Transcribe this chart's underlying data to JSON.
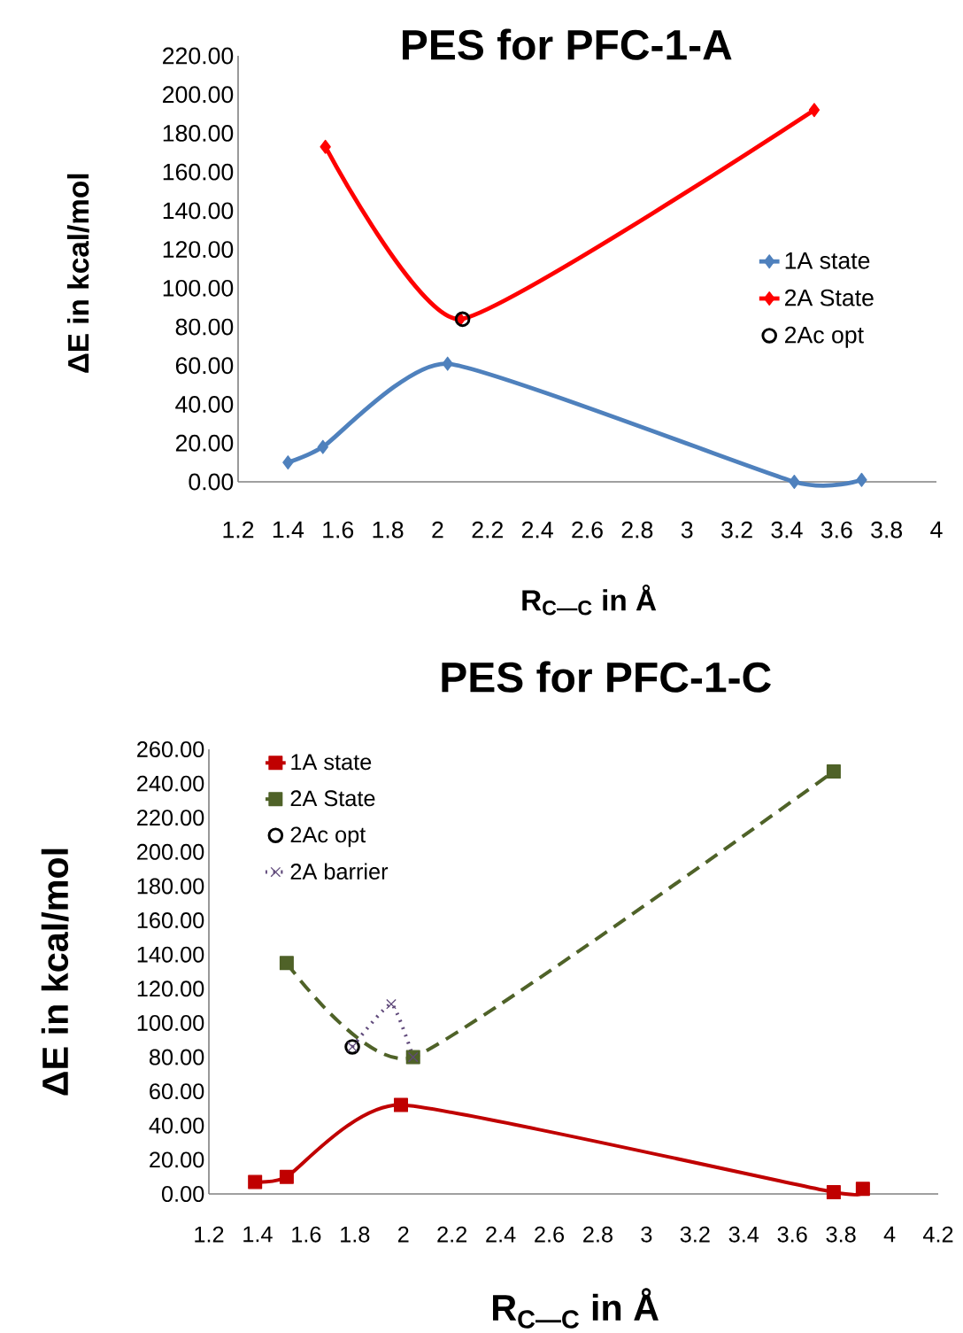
{
  "chart_data": [
    {
      "type": "line",
      "title": "PES for PFC-1-A",
      "xlabel": "R$_{C—C}$ in Å",
      "ylabel": "ΔE in kcal/mol",
      "xlim": [
        1.2,
        4
      ],
      "xticks": [
        1.2,
        1.4,
        1.6,
        1.8,
        2,
        2.2,
        2.4,
        2.6,
        2.8,
        3,
        3.2,
        3.4,
        3.6,
        3.8,
        4
      ],
      "ylim": [
        0,
        220
      ],
      "yticks": [
        {
          "value": 0,
          "label": "0.00"
        },
        {
          "value": 20,
          "label": "20.00"
        },
        {
          "value": 40,
          "label": "40.00"
        },
        {
          "value": 60,
          "label": "60.00"
        },
        {
          "value": 80,
          "label": "80.00"
        },
        {
          "value": 100,
          "label": "100.00"
        },
        {
          "value": 120,
          "label": "120.00"
        },
        {
          "value": 140,
          "label": "140.00"
        },
        {
          "value": 160,
          "label": "160.00"
        },
        {
          "value": 180,
          "label": "180.00"
        },
        {
          "value": 200,
          "label": "200.00"
        },
        {
          "value": 220,
          "label": "220.00"
        }
      ],
      "legend": "right",
      "grid": false,
      "series": [
        {
          "name": "1A state",
          "color": "#4f81bd",
          "marker": "diamond",
          "line_style": "solid",
          "x": [
            1.4,
            1.54,
            2.04,
            3.43,
            3.7
          ],
          "values": [
            10,
            18,
            61,
            0,
            1
          ]
        },
        {
          "name": "2A State",
          "color": "#ff0000",
          "marker": "diamond",
          "line_style": "solid",
          "x": [
            1.55,
            2.09,
            3.51
          ],
          "values": [
            173,
            84,
            192
          ]
        },
        {
          "name": "2Ac opt",
          "type": "scatter",
          "color": "#000000",
          "marker": "circle",
          "x": [
            2.1
          ],
          "values": [
            84
          ]
        }
      ]
    },
    {
      "type": "line",
      "title": "PES for PFC-1-C",
      "xlabel": "R$_{C—C}$ in Å",
      "ylabel": "ΔE in kcal/mol",
      "xlim": [
        1.2,
        4.2
      ],
      "xticks": [
        1.2,
        1.4,
        1.6,
        1.8,
        2,
        2.2,
        2.4,
        2.6,
        2.8,
        3,
        3.2,
        3.4,
        3.6,
        3.8,
        4,
        4.2
      ],
      "ylim": [
        0,
        260
      ],
      "yticks": [
        {
          "value": 0,
          "label": "0.00"
        },
        {
          "value": 20,
          "label": "20.00"
        },
        {
          "value": 40,
          "label": "40.00"
        },
        {
          "value": 60,
          "label": "60.00"
        },
        {
          "value": 80,
          "label": "80.00"
        },
        {
          "value": 100,
          "label": "100.00"
        },
        {
          "value": 120,
          "label": "120.00"
        },
        {
          "value": 140,
          "label": "140.00"
        },
        {
          "value": 160,
          "label": "160.00"
        },
        {
          "value": 180,
          "label": "180.00"
        },
        {
          "value": 200,
          "label": "200.00"
        },
        {
          "value": 220,
          "label": "220.00"
        },
        {
          "value": 240,
          "label": "240.00"
        },
        {
          "value": 260,
          "label": "260.00"
        }
      ],
      "legend": "top left",
      "grid": false,
      "series": [
        {
          "name": "1A state",
          "color": "#c00000",
          "marker": "square",
          "line_style": "solid",
          "x": [
            1.39,
            1.52,
            1.99,
            3.77,
            3.89
          ],
          "values": [
            7,
            10,
            52,
            1,
            3
          ]
        },
        {
          "name": "2A State",
          "color": "#4f6228",
          "marker": "square",
          "line_style": "dashed",
          "x": [
            1.52,
            2.04,
            3.77
          ],
          "values": [
            135,
            80,
            247
          ]
        },
        {
          "name": "2Ac opt",
          "type": "scatter",
          "color": "#000000",
          "marker": "circle",
          "x": [
            1.79
          ],
          "values": [
            86
          ]
        },
        {
          "name": "2A barrier",
          "color": "#604a7b",
          "marker": "cross",
          "line_style": "dotted",
          "x": [
            1.79,
            1.95,
            2.04
          ],
          "values": [
            86,
            111,
            80
          ]
        }
      ]
    }
  ]
}
